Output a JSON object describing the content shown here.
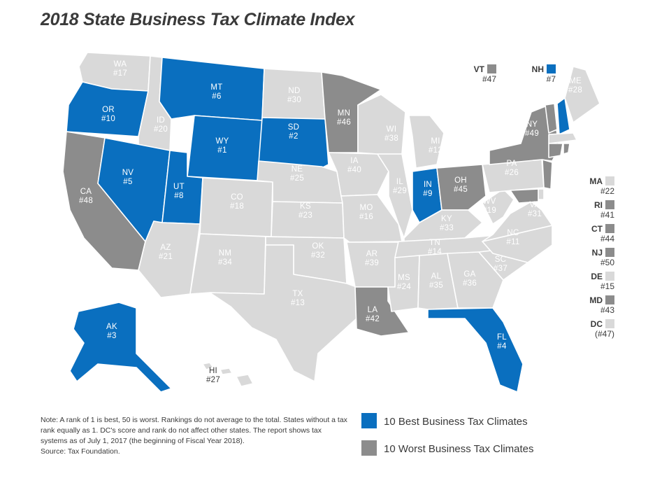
{
  "title": "2018 State Business Tax Climate Index",
  "colors": {
    "best": "#0a6fbf",
    "worst": "#8c8c8c",
    "other": "#d9d9d9",
    "label_dark": "#ffffff",
    "label_light": "#ffffff"
  },
  "states": [
    {
      "code": "WA",
      "rank": "#17",
      "cat": "other"
    },
    {
      "code": "OR",
      "rank": "#10",
      "cat": "best"
    },
    {
      "code": "CA",
      "rank": "#48",
      "cat": "worst"
    },
    {
      "code": "ID",
      "rank": "#20",
      "cat": "other"
    },
    {
      "code": "NV",
      "rank": "#5",
      "cat": "best"
    },
    {
      "code": "MT",
      "rank": "#6",
      "cat": "best"
    },
    {
      "code": "WY",
      "rank": "#1",
      "cat": "best"
    },
    {
      "code": "UT",
      "rank": "#8",
      "cat": "best"
    },
    {
      "code": "AZ",
      "rank": "#21",
      "cat": "other"
    },
    {
      "code": "CO",
      "rank": "#18",
      "cat": "other"
    },
    {
      "code": "NM",
      "rank": "#34",
      "cat": "other"
    },
    {
      "code": "ND",
      "rank": "#30",
      "cat": "other"
    },
    {
      "code": "SD",
      "rank": "#2",
      "cat": "best"
    },
    {
      "code": "NE",
      "rank": "#25",
      "cat": "other"
    },
    {
      "code": "KS",
      "rank": "#23",
      "cat": "other"
    },
    {
      "code": "OK",
      "rank": "#32",
      "cat": "other"
    },
    {
      "code": "TX",
      "rank": "#13",
      "cat": "other"
    },
    {
      "code": "MN",
      "rank": "#46",
      "cat": "worst"
    },
    {
      "code": "IA",
      "rank": "#40",
      "cat": "other"
    },
    {
      "code": "MO",
      "rank": "#16",
      "cat": "other"
    },
    {
      "code": "AR",
      "rank": "#39",
      "cat": "other"
    },
    {
      "code": "LA",
      "rank": "#42",
      "cat": "worst"
    },
    {
      "code": "WI",
      "rank": "#38",
      "cat": "other"
    },
    {
      "code": "IL",
      "rank": "#29",
      "cat": "other"
    },
    {
      "code": "MI",
      "rank": "#12",
      "cat": "other"
    },
    {
      "code": "IN",
      "rank": "#9",
      "cat": "best"
    },
    {
      "code": "OH",
      "rank": "#45",
      "cat": "worst"
    },
    {
      "code": "KY",
      "rank": "#33",
      "cat": "other"
    },
    {
      "code": "TN",
      "rank": "#14",
      "cat": "other"
    },
    {
      "code": "MS",
      "rank": "#24",
      "cat": "other"
    },
    {
      "code": "AL",
      "rank": "#35",
      "cat": "other"
    },
    {
      "code": "GA",
      "rank": "#36",
      "cat": "other"
    },
    {
      "code": "FL",
      "rank": "#4",
      "cat": "best"
    },
    {
      "code": "SC",
      "rank": "#37",
      "cat": "other"
    },
    {
      "code": "NC",
      "rank": "#11",
      "cat": "other"
    },
    {
      "code": "VA",
      "rank": "#31",
      "cat": "other"
    },
    {
      "code": "WV",
      "rank": "#19",
      "cat": "other"
    },
    {
      "code": "PA",
      "rank": "#26",
      "cat": "other"
    },
    {
      "code": "NY",
      "rank": "#49",
      "cat": "worst"
    },
    {
      "code": "ME",
      "rank": "#28",
      "cat": "other"
    },
    {
      "code": "AK",
      "rank": "#3",
      "cat": "best"
    },
    {
      "code": "HI",
      "rank": "#27",
      "cat": "other"
    }
  ],
  "small_states": [
    {
      "code": "VT",
      "rank": "#47",
      "cat": "worst"
    },
    {
      "code": "NH",
      "rank": "#7",
      "cat": "best"
    },
    {
      "code": "MA",
      "rank": "#22",
      "cat": "other"
    },
    {
      "code": "RI",
      "rank": "#41",
      "cat": "worst"
    },
    {
      "code": "CT",
      "rank": "#44",
      "cat": "worst"
    },
    {
      "code": "NJ",
      "rank": "#50",
      "cat": "worst"
    },
    {
      "code": "DE",
      "rank": "#15",
      "cat": "other"
    },
    {
      "code": "MD",
      "rank": "#43",
      "cat": "worst"
    },
    {
      "code": "DC",
      "rank": "(#47)",
      "cat": "other"
    }
  ],
  "note": "Note: A rank of 1 is best, 50 is worst. Rankings do not average to the total. States without a tax rank equally as 1. DC's score and rank do not affect other states. The report shows tax systems as of July 1, 2017 (the beginning of Fiscal Year 2018).",
  "source": "Source: Tax Foundation.",
  "legend": {
    "best": "10 Best Business Tax Climates",
    "worst": "10 Worst Business Tax Climates"
  }
}
